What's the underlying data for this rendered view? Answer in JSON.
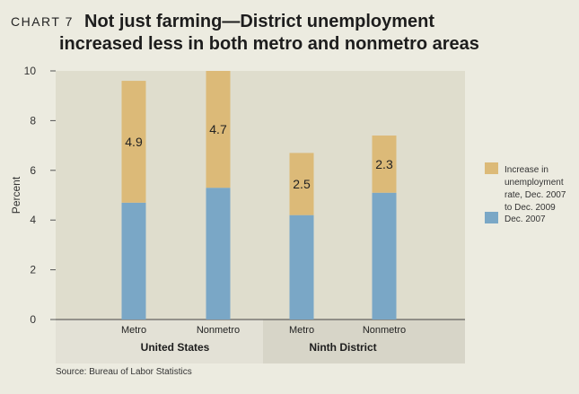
{
  "chart_label": "CHART 7",
  "title_line1": "Not just farming—District unemployment",
  "title_line2": "increased less in both metro and nonmetro areas",
  "source": "Source: Bureau of Labor Statistics",
  "colors": {
    "background": "#ecebe0",
    "plot_background": "#dfddcd",
    "increase": "#dcba78",
    "base": "#7aa7c6",
    "group_band_us": "#e3e1d6",
    "group_band_district": "#d7d5c8"
  },
  "chart_data": {
    "type": "bar",
    "stacked": true,
    "ylabel": "Percent",
    "ylim": [
      0,
      10
    ],
    "yticks": [
      0,
      2,
      4,
      6,
      8,
      10
    ],
    "categories": [
      "Metro",
      "Nonmetro",
      "Metro",
      "Nonmetro"
    ],
    "groups": [
      {
        "label": "United States",
        "categories": [
          0,
          1
        ]
      },
      {
        "label": "Ninth District",
        "categories": [
          2,
          3
        ]
      }
    ],
    "series": [
      {
        "name": "Dec. 2007",
        "values": [
          4.7,
          5.3,
          4.2,
          5.1
        ]
      },
      {
        "name": "Increase in unemployment rate, Dec. 2007 to Dec. 2009",
        "values": [
          4.9,
          4.7,
          2.5,
          2.3
        ]
      }
    ],
    "data_labels": [
      "4.9",
      "4.7",
      "2.5",
      "2.3"
    ],
    "legend": [
      {
        "lines": [
          "Increase in",
          "unemployment",
          "rate, Dec. 2007",
          "to Dec. 2009"
        ],
        "color_key": "increase"
      },
      {
        "lines": [
          "Dec. 2007"
        ],
        "color_key": "base"
      }
    ],
    "legend_position": "right",
    "grid": false
  }
}
